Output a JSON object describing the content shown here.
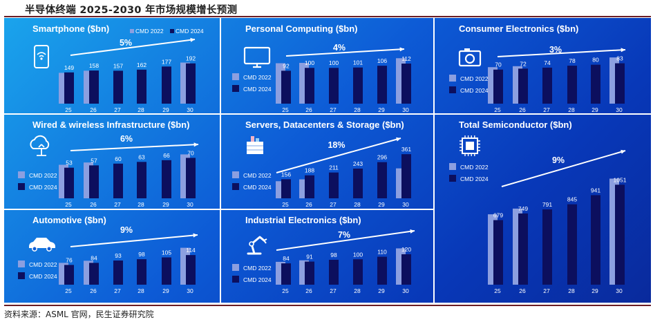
{
  "page": {
    "title": "半导体终端 2025-2030 年市场规模增长预测",
    "source": "资料来源：ASML 官网，民生证券研究院"
  },
  "colors": {
    "cmd2022": "#8c9fe0",
    "cmd2024": "#0c0f5e",
    "text": "#ffffff"
  },
  "chart_data": [
    {
      "type": "bar",
      "title": "Smartphone ($bn)",
      "icon": "smartphone-icon",
      "cagr": "5%",
      "categories": [
        "25",
        "26",
        "27",
        "28",
        "29",
        "30"
      ],
      "series": [
        {
          "name": "CMD 2022",
          "values": [
            147,
            157,
            null,
            null,
            null,
            196
          ]
        },
        {
          "name": "CMD 2024",
          "values": [
            149,
            158,
            157,
            162,
            177,
            192
          ]
        }
      ],
      "legend": [
        "CMD 2022",
        "CMD 2024"
      ],
      "legend_position": "top-right",
      "ylim": [
        0,
        290
      ]
    },
    {
      "type": "bar",
      "title": "Personal Computing ($bn)",
      "icon": "monitor-icon",
      "cagr": "4%",
      "categories": [
        "25",
        "26",
        "27",
        "28",
        "29",
        "30"
      ],
      "series": [
        {
          "name": "CMD 2022",
          "values": [
            113,
            114,
            null,
            null,
            null,
            127
          ]
        },
        {
          "name": "CMD 2024",
          "values": [
            92,
            100,
            100,
            101,
            106,
            112
          ]
        }
      ],
      "legend": [
        "CMD 2022",
        "CMD 2024"
      ],
      "legend_position": "left",
      "ylim": [
        0,
        170
      ]
    },
    {
      "type": "bar",
      "title": "Consumer Electronics ($bn)",
      "icon": "camera-icon",
      "cagr": "3%",
      "categories": [
        "25",
        "26",
        "27",
        "28",
        "29",
        "30"
      ],
      "series": [
        {
          "name": "CMD 2022",
          "values": [
            75,
            77,
            null,
            null,
            null,
            95
          ]
        },
        {
          "name": "CMD 2024",
          "values": [
            70,
            72,
            74,
            78,
            80,
            83
          ]
        }
      ],
      "legend": [
        "CMD 2022",
        "CMD 2024"
      ],
      "legend_position": "left",
      "ylim": [
        0,
        125
      ]
    },
    {
      "type": "bar",
      "title": "Wired & wireless Infrastructure ($bn)",
      "icon": "cloud-network-icon",
      "cagr": "6%",
      "categories": [
        "25",
        "26",
        "27",
        "28",
        "29",
        "30"
      ],
      "series": [
        {
          "name": "CMD 2022",
          "values": [
            58,
            62,
            null,
            null,
            null,
            76
          ]
        },
        {
          "name": "CMD 2024",
          "values": [
            53,
            57,
            60,
            63,
            66,
            70
          ]
        }
      ],
      "legend": [
        "CMD 2022",
        "CMD 2024"
      ],
      "legend_position": "left",
      "ylim": [
        0,
        110
      ]
    },
    {
      "type": "bar",
      "title": "Servers, Datacenters & Storage ($bn)",
      "icon": "datacenter-icon",
      "cagr": "18%",
      "categories": [
        "25",
        "26",
        "27",
        "28",
        "29",
        "30"
      ],
      "series": [
        {
          "name": "CMD 2022",
          "values": [
            140,
            155,
            null,
            null,
            null,
            245
          ]
        },
        {
          "name": "CMD 2024",
          "values": [
            156,
            188,
            211,
            243,
            296,
            361
          ]
        }
      ],
      "legend": [
        "CMD 2022",
        "CMD 2024"
      ],
      "legend_position": "left",
      "ylim": [
        0,
        520
      ]
    },
    {
      "type": "bar",
      "title": "Total Semiconductor ($bn)",
      "icon": "chip-icon",
      "cagr": "9%",
      "categories": [
        "25",
        "26",
        "27",
        "28",
        "29",
        "30"
      ],
      "series": [
        {
          "name": "CMD 2022",
          "values": [
            740,
            800,
            null,
            null,
            null,
            1115
          ]
        },
        {
          "name": "CMD 2024",
          "values": [
            679,
            749,
            791,
            845,
            941,
            1051
          ]
        }
      ],
      "legend": [
        "CMD 2022",
        "CMD 2024"
      ],
      "legend_position": "left",
      "ylim": [
        0,
        1540
      ]
    },
    {
      "type": "bar",
      "title": "Automotive ($bn)",
      "icon": "car-icon",
      "cagr": "9%",
      "categories": [
        "25",
        "26",
        "27",
        "28",
        "29",
        "30"
      ],
      "series": [
        {
          "name": "CMD 2022",
          "values": [
            84,
            92,
            null,
            null,
            null,
            142
          ]
        },
        {
          "name": "CMD 2024",
          "values": [
            76,
            84,
            93,
            98,
            105,
            114
          ]
        }
      ],
      "legend": [
        "CMD 2022",
        "CMD 2024"
      ],
      "legend_position": "left",
      "ylim": [
        0,
        210
      ]
    },
    {
      "type": "bar",
      "title": "Industrial Electronics ($bn)",
      "icon": "robot-arm-icon",
      "cagr": "7%",
      "categories": [
        "25",
        "26",
        "27",
        "28",
        "29",
        "30"
      ],
      "series": [
        {
          "name": "CMD 2022",
          "values": [
            90,
            96,
            null,
            null,
            null,
            143
          ]
        },
        {
          "name": "CMD 2024",
          "values": [
            84,
            91,
            98,
            100,
            110,
            120
          ]
        }
      ],
      "legend": [
        "CMD 2022",
        "CMD 2024"
      ],
      "legend_position": "left",
      "ylim": [
        0,
        215
      ]
    }
  ]
}
